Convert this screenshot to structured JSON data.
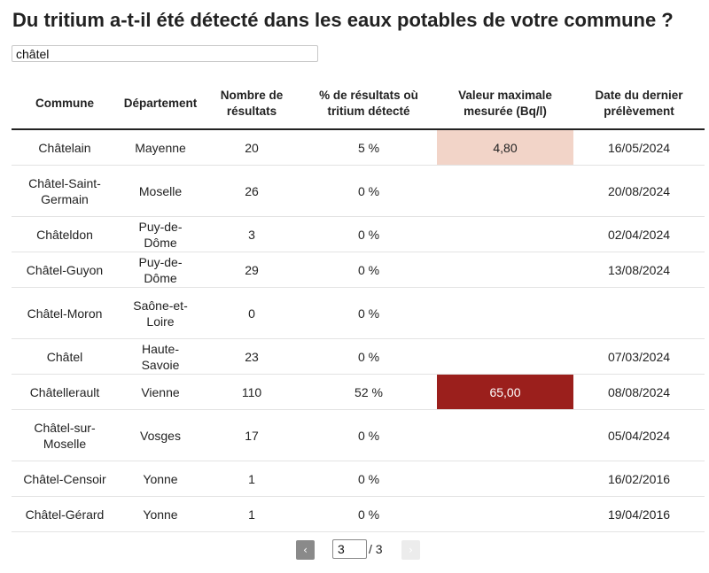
{
  "title": "Du tritium a-t-il été détecté dans les eaux potables de votre commune ?",
  "search": {
    "value": "châtel"
  },
  "table": {
    "headers": [
      "Commune",
      "Département",
      "Nombre de résultats",
      "% de résultats où tritium détecté",
      "Valeur maximale mesurée (Bq/l)",
      "Date du dernier prélèvement"
    ],
    "rows": [
      {
        "commune": "Châtelain",
        "departement": "Mayenne",
        "nombre": "20",
        "pct": "5 %",
        "max": "4,80",
        "max_bg": "#f2d4c8",
        "max_color": "#222222",
        "date": "16/05/2024"
      },
      {
        "commune": "Châtel-Saint-Germain",
        "departement": "Moselle",
        "nombre": "26",
        "pct": "0 %",
        "max": "",
        "max_bg": "",
        "max_color": "",
        "date": "20/08/2024"
      },
      {
        "commune": "Châteldon",
        "departement": "Puy-de-Dôme",
        "nombre": "3",
        "pct": "0 %",
        "max": "",
        "max_bg": "",
        "max_color": "",
        "date": "02/04/2024"
      },
      {
        "commune": "Châtel-Guyon",
        "departement": "Puy-de-Dôme",
        "nombre": "29",
        "pct": "0 %",
        "max": "",
        "max_bg": "",
        "max_color": "",
        "date": "13/08/2024"
      },
      {
        "commune": "Châtel-Moron",
        "departement": "Saône-et-Loire",
        "nombre": "0",
        "pct": "0 %",
        "max": "",
        "max_bg": "",
        "max_color": "",
        "date": ""
      },
      {
        "commune": "Châtel",
        "departement": "Haute-Savoie",
        "nombre": "23",
        "pct": "0 %",
        "max": "",
        "max_bg": "",
        "max_color": "",
        "date": "07/03/2024"
      },
      {
        "commune": "Châtellerault",
        "departement": "Vienne",
        "nombre": "110",
        "pct": "52 %",
        "max": "65,00",
        "max_bg": "#9b1f1c",
        "max_color": "#ffffff",
        "date": "08/08/2024"
      },
      {
        "commune": "Châtel-sur-Moselle",
        "departement": "Vosges",
        "nombre": "17",
        "pct": "0 %",
        "max": "",
        "max_bg": "",
        "max_color": "",
        "date": "05/04/2024"
      },
      {
        "commune": "Châtel-Censoir",
        "departement": "Yonne",
        "nombre": "1",
        "pct": "0 %",
        "max": "",
        "max_bg": "",
        "max_color": "",
        "date": "16/02/2016"
      },
      {
        "commune": "Châtel-Gérard",
        "departement": "Yonne",
        "nombre": "1",
        "pct": "0 %",
        "max": "",
        "max_bg": "",
        "max_color": "",
        "date": "19/04/2016"
      }
    ]
  },
  "pagination": {
    "prev_icon": "chevron-left-icon",
    "prev_glyph": "‹",
    "current_page": "3",
    "total_label": "/ 3",
    "next_icon": "chevron-right-icon",
    "next_glyph": "›"
  }
}
